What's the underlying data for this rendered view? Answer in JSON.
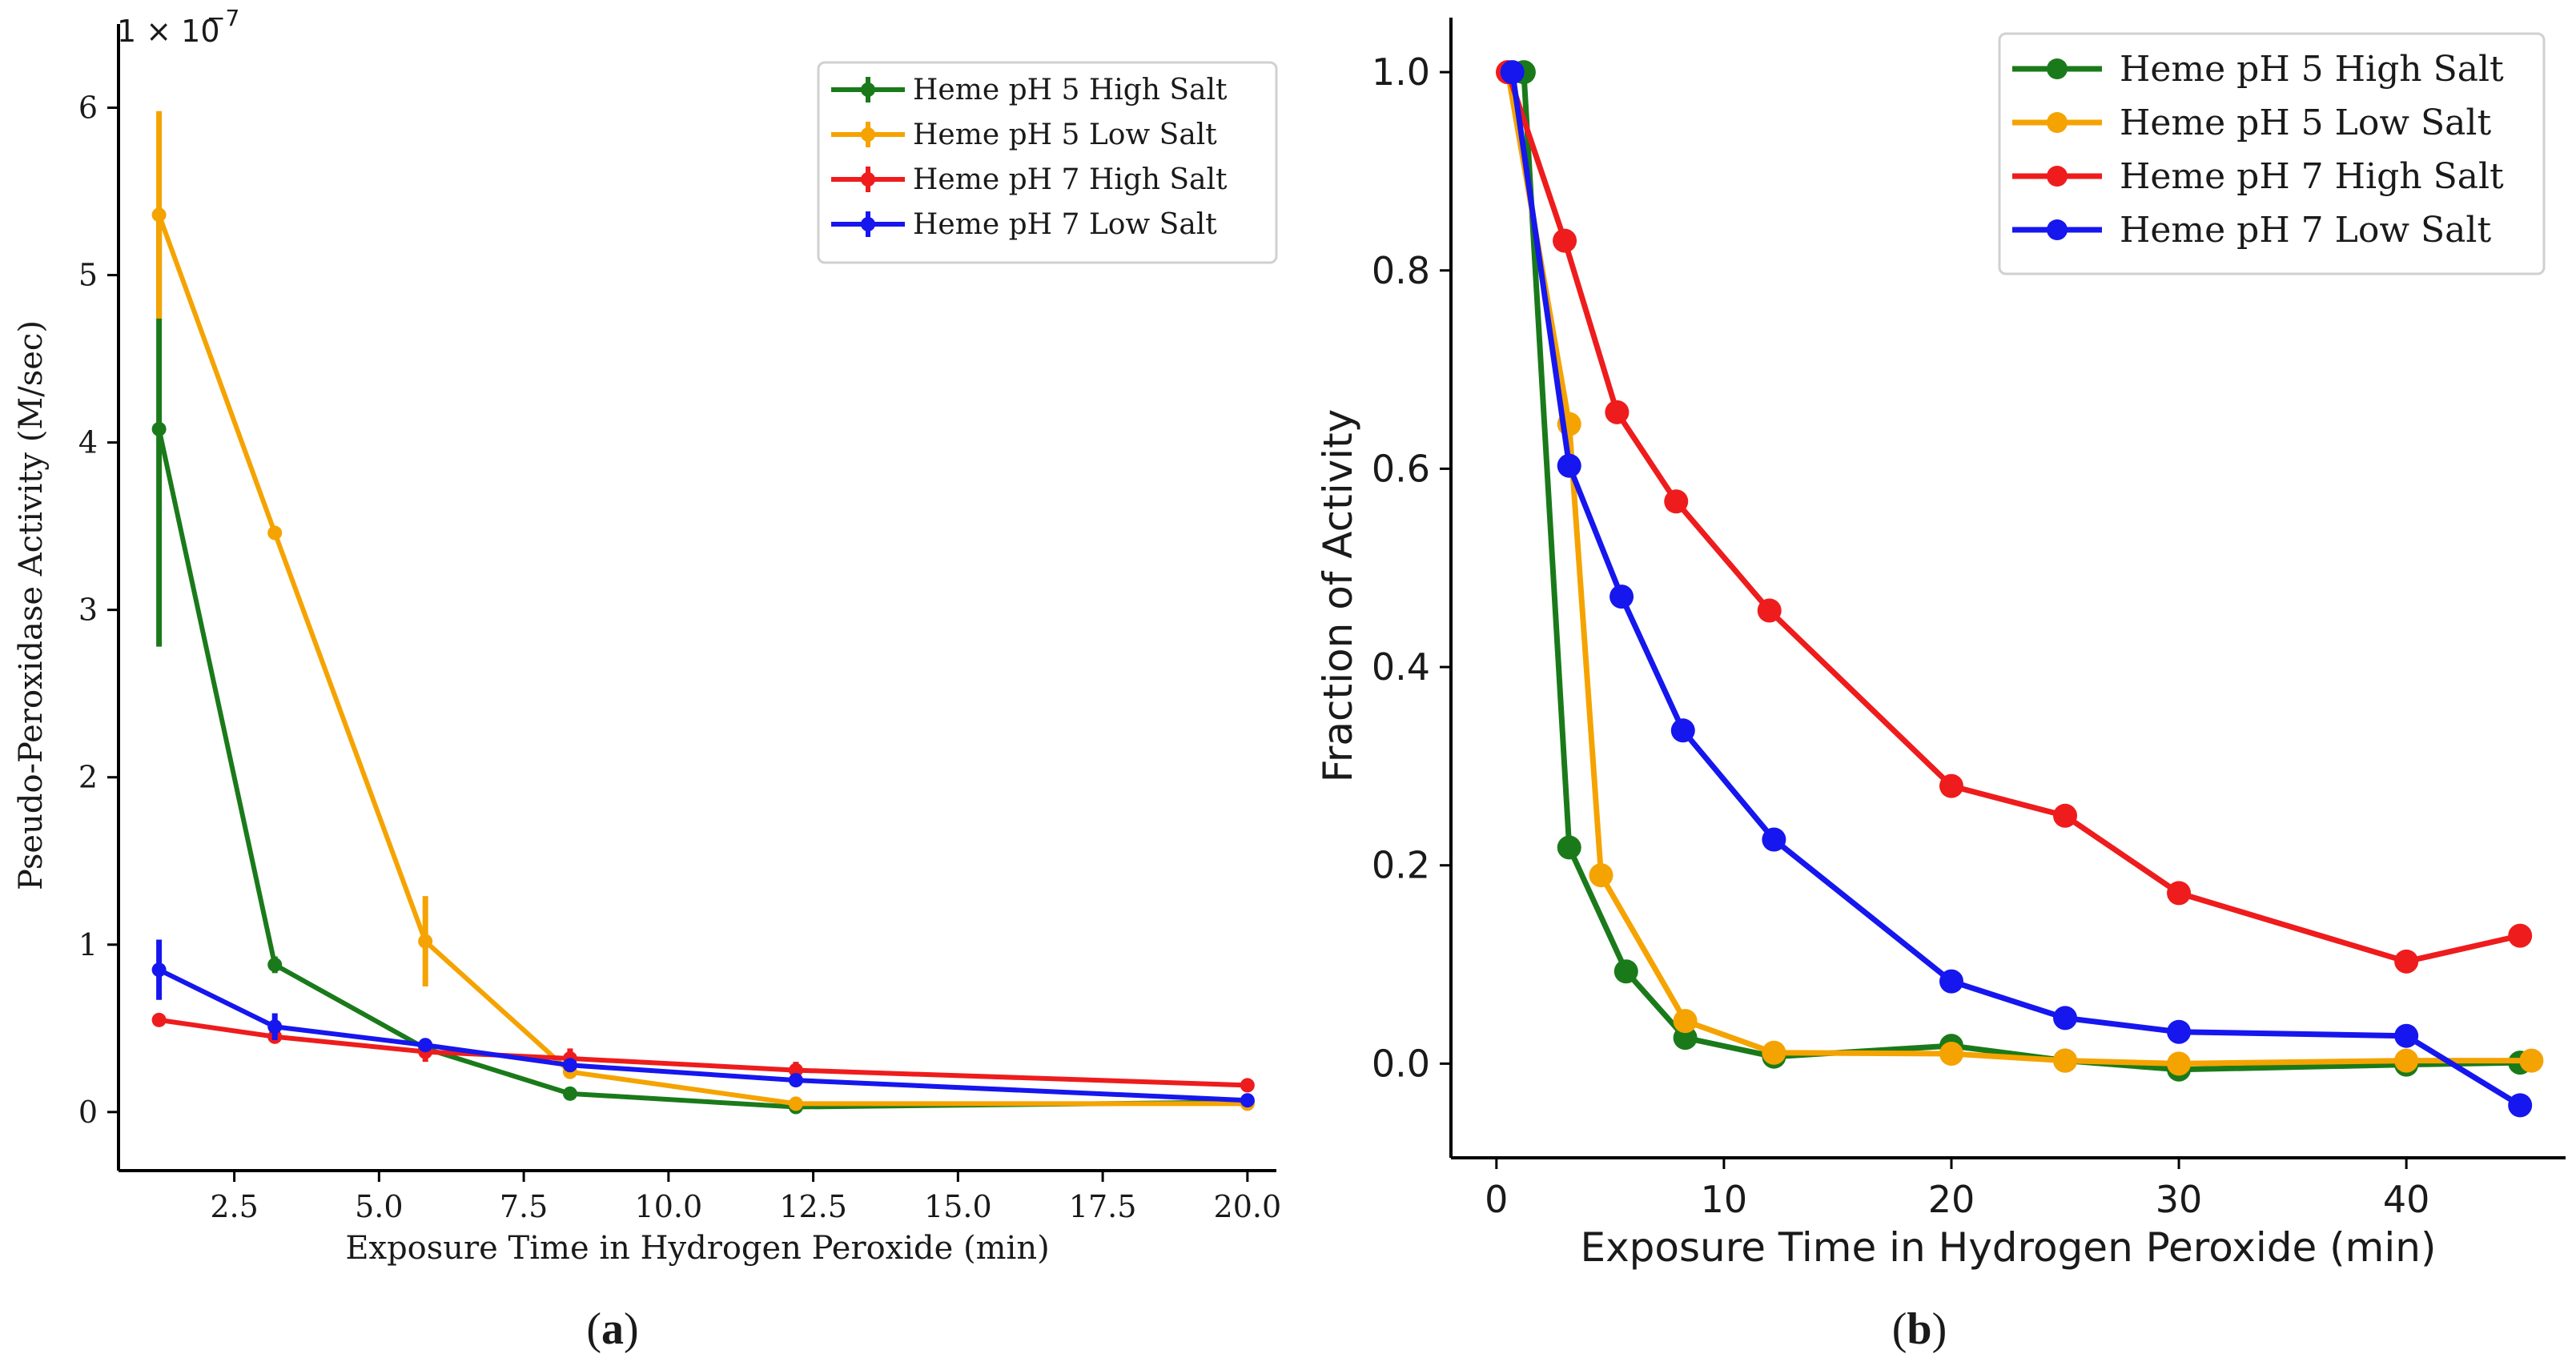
{
  "chart_data": [
    {
      "type": "line",
      "panel_label": "a",
      "xlabel": "Exposure Time in Hydrogen Peroxide (min)",
      "ylabel": "Pseudo-Peroxidase Activity (M/sec)",
      "y_multiplier_label": "1 × 10",
      "y_multiplier_exponent": "−7",
      "xlim": [
        0.5,
        20.5
      ],
      "ylim": [
        -0.35,
        6.5
      ],
      "x_ticks": [
        2.5,
        5.0,
        7.5,
        10.0,
        12.5,
        15.0,
        17.5,
        20.0
      ],
      "x_tick_labels": [
        "2.5",
        "5.0",
        "7.5",
        "10.0",
        "12.5",
        "15.0",
        "17.5",
        "20.0"
      ],
      "y_ticks": [
        0,
        1,
        2,
        3,
        4,
        5,
        6
      ],
      "y_tick_labels": [
        "0",
        "1",
        "2",
        "3",
        "4",
        "5",
        "6"
      ],
      "legend_position": "top-right",
      "grid": false,
      "series": [
        {
          "name": "Heme pH 5 High Salt",
          "color": "#1a7a1a",
          "x": [
            1.2,
            3.2,
            5.8,
            8.3,
            12.2,
            20.0
          ],
          "y": [
            4.08,
            0.88,
            0.38,
            0.11,
            0.03,
            0.06
          ],
          "err": [
            1.3,
            0.05,
            0.03,
            0.03,
            0.02,
            0.02
          ]
        },
        {
          "name": "Heme pH 5 Low Salt",
          "color": "#f5a300",
          "x": [
            1.2,
            3.2,
            5.8,
            8.3,
            12.2,
            20.0
          ],
          "y": [
            5.36,
            3.46,
            1.02,
            0.24,
            0.05,
            0.05
          ],
          "err": [
            0.62,
            0.04,
            0.27,
            0.03,
            0.02,
            0.02
          ]
        },
        {
          "name": "Heme pH 7 High Salt",
          "color": "#ee1c1c",
          "x": [
            1.2,
            3.2,
            5.8,
            8.3,
            12.2,
            20.0
          ],
          "y": [
            0.55,
            0.45,
            0.36,
            0.32,
            0.25,
            0.16
          ],
          "err": [
            0.03,
            0.03,
            0.06,
            0.06,
            0.05,
            0.04
          ]
        },
        {
          "name": "Heme pH 7 Low Salt",
          "color": "#1616ee",
          "x": [
            1.2,
            3.2,
            5.8,
            8.3,
            12.2,
            20.0
          ],
          "y": [
            0.85,
            0.51,
            0.4,
            0.28,
            0.19,
            0.07
          ],
          "err": [
            0.18,
            0.08,
            0.04,
            0.04,
            0.04,
            0.03
          ]
        }
      ]
    },
    {
      "type": "line",
      "panel_label": "b",
      "xlabel": "Exposure Time in Hydrogen Peroxide (min)",
      "ylabel": "Fraction of Activity",
      "xlim": [
        -2,
        47
      ],
      "ylim": [
        -0.095,
        1.055
      ],
      "x_ticks": [
        0,
        10,
        20,
        30,
        40
      ],
      "x_tick_labels": [
        "0",
        "10",
        "20",
        "30",
        "40"
      ],
      "y_ticks": [
        0.0,
        0.2,
        0.4,
        0.6,
        0.8,
        1.0
      ],
      "y_tick_labels": [
        "0.0",
        "0.2",
        "0.4",
        "0.6",
        "0.8",
        "1.0"
      ],
      "legend_position": "top-right",
      "grid": false,
      "series": [
        {
          "name": "Heme pH 5 High Salt",
          "color": "#1a7a1a",
          "x": [
            1.2,
            3.2,
            5.7,
            8.3,
            12.2,
            20.0,
            25.0,
            30.0,
            40.0,
            45.0
          ],
          "y": [
            1.0,
            0.218,
            0.093,
            0.026,
            0.007,
            0.018,
            0.003,
            -0.006,
            -0.001,
            0.001
          ]
        },
        {
          "name": "Heme pH 5 Low Salt",
          "color": "#f5a300",
          "x": [
            0.5,
            3.2,
            4.6,
            8.3,
            12.2,
            20.0,
            25.0,
            30.0,
            40.0,
            45.5
          ],
          "y": [
            1.0,
            0.645,
            0.19,
            0.043,
            0.011,
            0.01,
            0.003,
            0.0,
            0.003,
            0.003
          ]
        },
        {
          "name": "Heme pH 7 High Salt",
          "color": "#ee1c1c",
          "x": [
            0.5,
            3.0,
            5.3,
            7.9,
            12.0,
            20.0,
            25.0,
            30.0,
            40.0,
            45.0
          ],
          "y": [
            1.0,
            0.83,
            0.657,
            0.567,
            0.457,
            0.28,
            0.25,
            0.172,
            0.103,
            0.129
          ]
        },
        {
          "name": "Heme pH 7 Low Salt",
          "color": "#1616ee",
          "x": [
            0.7,
            3.2,
            5.5,
            8.2,
            12.2,
            20.0,
            25.0,
            30.0,
            40.0,
            45.0
          ],
          "y": [
            1.0,
            0.603,
            0.471,
            0.336,
            0.226,
            0.083,
            0.046,
            0.032,
            0.028,
            -0.042
          ]
        }
      ]
    }
  ]
}
